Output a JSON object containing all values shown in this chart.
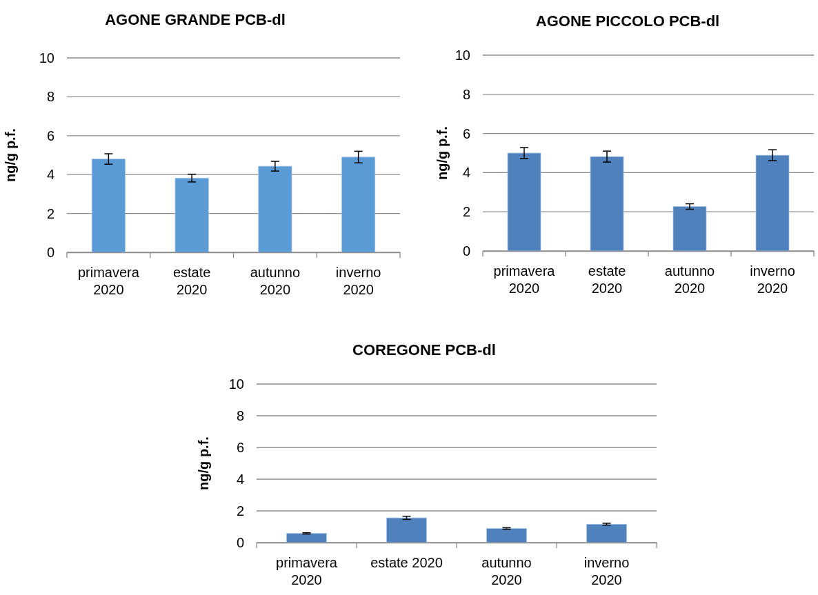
{
  "chart_data": [
    {
      "type": "bar",
      "title": "AGONE GRANDE PCB-dl",
      "ylabel": "ng/g p.f.",
      "categories": [
        "primavera 2020",
        "estate 2020",
        "autunno 2020",
        "inverno 2020"
      ],
      "series": [
        {
          "color": "#5b9bd5",
          "values": [
            4.8,
            3.82,
            4.43,
            4.9
          ],
          "errors": [
            0.27,
            0.2,
            0.25,
            0.3
          ]
        }
      ],
      "ylim": [
        0,
        10
      ],
      "yticks": [
        0,
        2,
        4,
        6,
        8,
        10
      ],
      "grid": "y"
    },
    {
      "type": "bar",
      "title": "AGONE PICCOLO PCB-dl",
      "ylabel": "ng/g p.f.",
      "categories": [
        "primavera 2020",
        "estate 2020",
        "autunno 2020",
        "inverno 2020"
      ],
      "series": [
        {
          "color": "#4f81bd",
          "values": [
            5.0,
            4.82,
            2.27,
            4.89
          ],
          "errors": [
            0.28,
            0.28,
            0.14,
            0.28
          ]
        }
      ],
      "ylim": [
        0,
        10
      ],
      "yticks": [
        0,
        2,
        4,
        6,
        8,
        10
      ],
      "grid": "y"
    },
    {
      "type": "bar",
      "title": "COREGONE PCB-dl",
      "ylabel": "ng/g p.f.",
      "categories": [
        "primavera 2020",
        "estate 2020",
        "autunno 2020",
        "inverno 2020"
      ],
      "series": [
        {
          "color": "#4f81bd",
          "values": [
            0.58,
            1.56,
            0.89,
            1.16
          ],
          "errors": [
            0.04,
            0.1,
            0.05,
            0.06
          ]
        }
      ],
      "ylim": [
        0,
        10
      ],
      "yticks": [
        0,
        2,
        4,
        6,
        8,
        10
      ],
      "grid": "y"
    }
  ]
}
